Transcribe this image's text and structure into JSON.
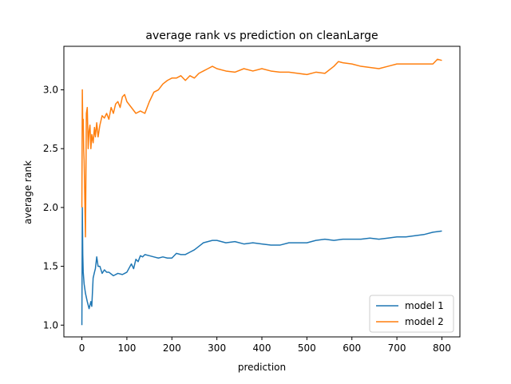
{
  "chart_data": {
    "type": "line",
    "title": "average rank vs prediction on cleanLarge",
    "xlabel": "prediction",
    "ylabel": "average rank",
    "xlim": [
      -40,
      840
    ],
    "ylim": [
      0.9,
      3.37
    ],
    "xticks": [
      0,
      100,
      200,
      300,
      400,
      500,
      600,
      700,
      800
    ],
    "yticks": [
      1.0,
      1.5,
      2.0,
      2.5,
      3.0
    ],
    "ytick_labels": [
      "1.0",
      "1.5",
      "2.0",
      "2.5",
      "3.0"
    ],
    "grid": false,
    "legend_position": "lower-right",
    "series": [
      {
        "name": "model 1",
        "color": "#1f77b4",
        "x": [
          0,
          1,
          2,
          3,
          5,
          8,
          12,
          16,
          20,
          22,
          25,
          28,
          30,
          33,
          36,
          40,
          45,
          50,
          55,
          60,
          70,
          80,
          90,
          95,
          100,
          110,
          115,
          120,
          125,
          130,
          135,
          140,
          150,
          160,
          170,
          180,
          190,
          200,
          210,
          220,
          230,
          240,
          250,
          260,
          270,
          280,
          290,
          300,
          320,
          340,
          360,
          380,
          400,
          420,
          440,
          460,
          480,
          500,
          520,
          540,
          560,
          580,
          600,
          620,
          640,
          660,
          680,
          700,
          720,
          740,
          760,
          780,
          800
        ],
        "y": [
          1.0,
          2.0,
          1.6,
          1.45,
          1.35,
          1.27,
          1.2,
          1.14,
          1.2,
          1.16,
          1.4,
          1.45,
          1.48,
          1.58,
          1.5,
          1.5,
          1.44,
          1.47,
          1.45,
          1.45,
          1.42,
          1.44,
          1.43,
          1.44,
          1.45,
          1.52,
          1.48,
          1.56,
          1.54,
          1.59,
          1.58,
          1.6,
          1.59,
          1.58,
          1.57,
          1.58,
          1.57,
          1.57,
          1.61,
          1.6,
          1.6,
          1.62,
          1.64,
          1.67,
          1.7,
          1.71,
          1.72,
          1.72,
          1.7,
          1.71,
          1.69,
          1.7,
          1.69,
          1.68,
          1.68,
          1.7,
          1.7,
          1.7,
          1.72,
          1.73,
          1.72,
          1.73,
          1.73,
          1.73,
          1.74,
          1.73,
          1.74,
          1.75,
          1.75,
          1.76,
          1.77,
          1.79,
          1.8
        ]
      },
      {
        "name": "model 2",
        "color": "#ff7f0e",
        "x": [
          0,
          1,
          2,
          3,
          4,
          5,
          6,
          7,
          8,
          10,
          12,
          14,
          16,
          18,
          20,
          22,
          25,
          28,
          30,
          33,
          36,
          40,
          45,
          50,
          55,
          60,
          65,
          70,
          75,
          80,
          85,
          90,
          95,
          100,
          110,
          120,
          130,
          140,
          150,
          160,
          170,
          180,
          190,
          200,
          210,
          220,
          230,
          240,
          250,
          260,
          270,
          280,
          290,
          300,
          320,
          340,
          360,
          380,
          400,
          420,
          440,
          460,
          480,
          500,
          520,
          540,
          560,
          570,
          580,
          600,
          620,
          640,
          660,
          680,
          700,
          720,
          740,
          760,
          780,
          790,
          800
        ],
        "y": [
          2.0,
          3.0,
          2.67,
          2.75,
          2.5,
          2.4,
          2.2,
          1.95,
          1.75,
          2.8,
          2.85,
          2.5,
          2.65,
          2.7,
          2.5,
          2.62,
          2.55,
          2.68,
          2.6,
          2.72,
          2.6,
          2.7,
          2.78,
          2.76,
          2.8,
          2.75,
          2.85,
          2.8,
          2.88,
          2.9,
          2.85,
          2.94,
          2.96,
          2.9,
          2.85,
          2.8,
          2.82,
          2.8,
          2.9,
          2.98,
          3.0,
          3.05,
          3.08,
          3.1,
          3.1,
          3.12,
          3.08,
          3.12,
          3.1,
          3.14,
          3.16,
          3.18,
          3.2,
          3.18,
          3.16,
          3.15,
          3.18,
          3.16,
          3.18,
          3.16,
          3.15,
          3.15,
          3.14,
          3.13,
          3.15,
          3.14,
          3.2,
          3.24,
          3.23,
          3.22,
          3.2,
          3.19,
          3.18,
          3.2,
          3.22,
          3.22,
          3.22,
          3.22,
          3.22,
          3.26,
          3.25
        ]
      }
    ]
  }
}
